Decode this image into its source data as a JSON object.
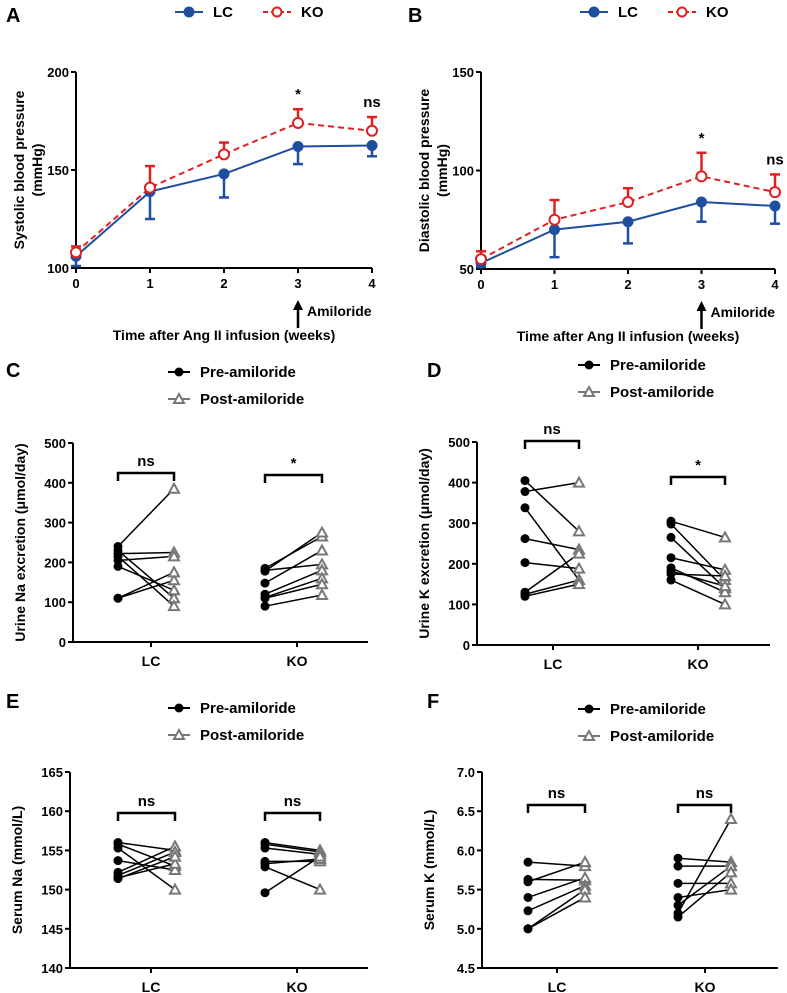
{
  "chart_data": [
    {
      "panel": "A",
      "type": "line",
      "xlabel": "Time after Ang II infusion (weeks)",
      "ylabel": [
        "Systolic blood pressure",
        "(mmHg)"
      ],
      "x": [
        0,
        1,
        2,
        3,
        4
      ],
      "xticks": [
        "0",
        "1",
        "2",
        "3",
        "4"
      ],
      "ylim": [
        100,
        200
      ],
      "yticks": [
        "100",
        "150",
        "200"
      ],
      "series": [
        {
          "name": "LC",
          "color": "#1f4e9e",
          "style": "solid",
          "marker": "filled-circle",
          "error_bar_direction": "down",
          "values": [
            106,
            139,
            148,
            162,
            162.5
          ],
          "error": [
            5,
            14,
            12,
            9,
            5.5
          ]
        },
        {
          "name": "KO",
          "color": "#e02020",
          "style": "dashed",
          "marker": "open-circle",
          "error_bar_direction": "up",
          "values": [
            108,
            141,
            158,
            174,
            170
          ],
          "error": [
            3,
            11,
            6,
            7,
            7
          ]
        }
      ],
      "annotations": [
        {
          "x": 3,
          "text": "*"
        },
        {
          "x": 4,
          "text": "ns"
        }
      ],
      "event": {
        "x": 3,
        "text": "Amiloride"
      },
      "legend": "top",
      "grid": false
    },
    {
      "panel": "B",
      "type": "line",
      "xlabel": "Time after Ang II infusion (weeks)",
      "ylabel": [
        "Diastolic blood pressure",
        "(mmHg)"
      ],
      "x": [
        0,
        1,
        2,
        3,
        4
      ],
      "xticks": [
        "0",
        "1",
        "2",
        "3",
        "4"
      ],
      "ylim": [
        50,
        150
      ],
      "yticks": [
        "50",
        "100",
        "150"
      ],
      "series": [
        {
          "name": "LC",
          "color": "#1f4e9e",
          "style": "solid",
          "marker": "filled-circle",
          "error_bar_direction": "down",
          "values": [
            53,
            70,
            74,
            84,
            82
          ],
          "error": [
            2,
            14,
            11,
            10,
            9
          ]
        },
        {
          "name": "KO",
          "color": "#e02020",
          "style": "dashed",
          "marker": "open-circle",
          "error_bar_direction": "up",
          "values": [
            55,
            75,
            84,
            97,
            89
          ],
          "error": [
            4,
            10,
            7,
            12,
            9
          ]
        }
      ],
      "annotations": [
        {
          "x": 3,
          "text": "*"
        },
        {
          "x": 4,
          "text": "ns"
        }
      ],
      "event": {
        "x": 3,
        "text": "Amiloride"
      },
      "legend": "top",
      "grid": false
    },
    {
      "panel": "C",
      "type": "paired-scatter",
      "ylabel": "Urine Na excretion (μmol/day)",
      "ylim": [
        0,
        500
      ],
      "yticks": [
        "0",
        "100",
        "200",
        "300",
        "400",
        "500"
      ],
      "categories": [
        "LC",
        "KO"
      ],
      "legend_labels": [
        "Pre-amiloride",
        "Post-amiloride"
      ],
      "legend": "top",
      "groups": [
        {
          "category": "LC",
          "significance": "ns",
          "pairs": [
            [
              240,
              385
            ],
            [
              230,
              110
            ],
            [
              222,
              225
            ],
            [
              215,
              90
            ],
            [
              205,
              215
            ],
            [
              190,
              130
            ],
            [
              110,
              155
            ],
            [
              110,
              175
            ]
          ]
        },
        {
          "category": "KO",
          "significance": "*",
          "pairs": [
            [
              185,
              265
            ],
            [
              180,
              195
            ],
            [
              178,
              275
            ],
            [
              148,
              230
            ],
            [
              120,
              180
            ],
            [
              112,
              160
            ],
            [
              110,
              145
            ],
            [
              90,
              118
            ]
          ]
        }
      ]
    },
    {
      "panel": "D",
      "type": "paired-scatter",
      "ylabel": "Urine K excretion (μmol/day)",
      "ylim": [
        0,
        500
      ],
      "yticks": [
        "0",
        "100",
        "200",
        "300",
        "400",
        "500"
      ],
      "categories": [
        "LC",
        "KO"
      ],
      "legend_labels": [
        "Pre-amiloride",
        "Post-amiloride"
      ],
      "legend": "top",
      "groups": [
        {
          "category": "LC",
          "significance": "ns",
          "pairs": [
            [
              405,
              280
            ],
            [
              378,
              400
            ],
            [
              338,
              160
            ],
            [
              262,
              235
            ],
            [
              203,
              188
            ],
            [
              130,
              225
            ],
            [
              125,
              160
            ],
            [
              120,
              150
            ]
          ]
        },
        {
          "category": "KO",
          "significance": "*",
          "pairs": [
            [
              305,
              265
            ],
            [
              298,
              160
            ],
            [
              265,
              140
            ],
            [
              215,
              185
            ],
            [
              190,
              130
            ],
            [
              182,
              145
            ],
            [
              175,
              170
            ],
            [
              160,
              100
            ]
          ]
        }
      ]
    },
    {
      "panel": "E",
      "type": "paired-scatter",
      "ylabel": "Serum Na (mmol/L)",
      "ylim": [
        140,
        165
      ],
      "yticks": [
        "140",
        "145",
        "150",
        "155",
        "160",
        "165"
      ],
      "categories": [
        "LC",
        "KO"
      ],
      "legend_labels": [
        "Pre-amiloride",
        "Post-amiloride"
      ],
      "legend": "top",
      "groups": [
        {
          "category": "LC",
          "significance": "ns",
          "pairs": [
            [
              156,
              155
            ],
            [
              155.8,
              153
            ],
            [
              155.3,
              150
            ],
            [
              153.7,
              152.5
            ],
            [
              152.2,
              155.5
            ],
            [
              151.8,
              154.8
            ],
            [
              151.5,
              153.3
            ],
            [
              151.4,
              154.2
            ]
          ]
        },
        {
          "category": "KO",
          "significance": "ns",
          "pairs": [
            [
              156,
              155
            ],
            [
              155.8,
              154.8
            ],
            [
              155.3,
              154.5
            ],
            [
              153.6,
              153.6
            ],
            [
              153.3,
              153.9
            ],
            [
              152.9,
              150
            ],
            [
              149.6,
              154.2
            ]
          ]
        }
      ]
    },
    {
      "panel": "F",
      "type": "paired-scatter",
      "ylabel": "Serum K (mmol/L)",
      "ylim": [
        4.5,
        7.0
      ],
      "yticks": [
        "4.5",
        "5.0",
        "5.5",
        "6.0",
        "6.5",
        "7.0"
      ],
      "categories": [
        "LC",
        "KO"
      ],
      "legend_labels": [
        "Pre-amiloride",
        "Post-amiloride"
      ],
      "legend": "top",
      "groups": [
        {
          "category": "LC",
          "significance": "ns",
          "pairs": [
            [
              5.85,
              5.8
            ],
            [
              5.63,
              5.62
            ],
            [
              5.6,
              5.85
            ],
            [
              5.4,
              5.65
            ],
            [
              5.23,
              5.55
            ],
            [
              5.0,
              5.5
            ],
            [
              5.0,
              5.4
            ]
          ]
        },
        {
          "category": "KO",
          "significance": "ns",
          "pairs": [
            [
              5.9,
              5.85
            ],
            [
              5.8,
              5.8
            ],
            [
              5.58,
              5.58
            ],
            [
              5.4,
              5.5
            ],
            [
              5.3,
              5.8
            ],
            [
              5.2,
              6.4
            ],
            [
              5.15,
              5.72
            ]
          ]
        }
      ]
    }
  ],
  "colors": {
    "pre": "#000000",
    "post": "#777777"
  }
}
